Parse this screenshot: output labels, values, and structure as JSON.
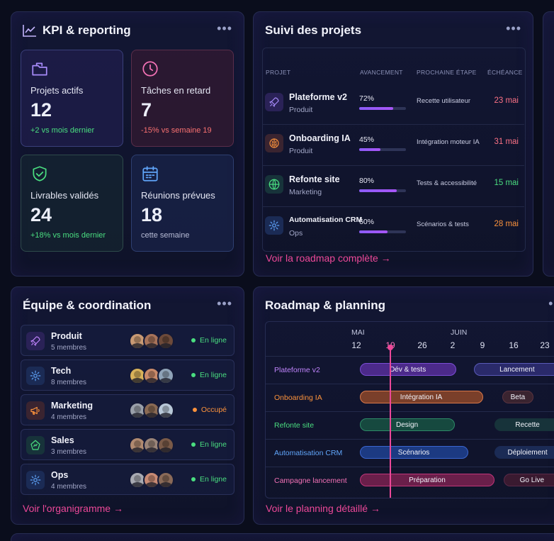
{
  "kpi": {
    "title": "KPI & reporting",
    "cards": [
      {
        "label": "Projets actifs",
        "value": "12",
        "sub": "+2 vs mois dernier",
        "icon": "folder-icon",
        "color": "#a78bfa"
      },
      {
        "label": "Tâches en retard",
        "value": "7",
        "sub": "-15% vs semaine 19",
        "icon": "clock-icon",
        "color": "#f472b6"
      },
      {
        "label": "Livrables validés",
        "value": "24",
        "sub": "+18% vs mois dernier",
        "icon": "shield-check-icon",
        "color": "#4ade80"
      },
      {
        "label": "Réunions prévues",
        "value": "18",
        "sub": "cette semaine",
        "icon": "calendar-icon",
        "color": "#60a5fa"
      }
    ]
  },
  "projects": {
    "title": "Suivi des projets",
    "headers": {
      "project": "PROJET",
      "progress": "AVANCEMENT",
      "next": "PROCHAINE ÉTAPE",
      "due": "ÉCHÉANCE"
    },
    "rows": [
      {
        "name": "Plateforme v2",
        "cat": "Produit",
        "pct": "72%",
        "progress": 0.72,
        "step": "Recette utilisateur",
        "due": "23 mai",
        "dueColor": "#fb7185",
        "icon": "rocket-icon",
        "iconColor": "#a78bfa",
        "iconBg": "#2a2257"
      },
      {
        "name": "Onboarding IA",
        "cat": "Produit",
        "pct": "45%",
        "progress": 0.45,
        "step": "Intégration moteur IA",
        "due": "31 mai",
        "dueColor": "#fb7185",
        "icon": "brain-icon",
        "iconColor": "#fb923c",
        "iconBg": "#3a2430"
      },
      {
        "name": "Refonte site",
        "cat": "Marketing",
        "pct": "80%",
        "progress": 0.8,
        "step": "Tests & accessibilité",
        "due": "15 mai",
        "dueColor": "#4ade80",
        "icon": "globe-icon",
        "iconColor": "#4ade80",
        "iconBg": "#17333a"
      },
      {
        "name": "Automatisation CRM",
        "cat": "Ops",
        "pct": "60%",
        "progress": 0.6,
        "step": "Scénarios & tests",
        "due": "28 mai",
        "dueColor": "#fb923c",
        "icon": "gear-icon",
        "iconColor": "#60a5fa",
        "iconBg": "#1b2b55"
      }
    ],
    "link": "Voir la roadmap complète"
  },
  "team": {
    "title": "Équipe & coordination",
    "rows": [
      {
        "name": "Produit",
        "count": "5 membres",
        "status": "En ligne",
        "statusColor": "#4ade80",
        "icon": "rocket-icon",
        "iconColor": "#c084fc",
        "iconBg": "#2a2257",
        "avatars": [
          "#c99a74",
          "#a8735a",
          "#6d4a3a"
        ]
      },
      {
        "name": "Tech",
        "count": "8 membres",
        "status": "En ligne",
        "statusColor": "#4ade80",
        "icon": "gear-icon",
        "iconColor": "#60a5fa",
        "iconBg": "#1b2b55",
        "avatars": [
          "#d8b25a",
          "#c98a6a",
          "#8fa3b8"
        ]
      },
      {
        "name": "Marketing",
        "count": "4 membres",
        "status": "Occupé",
        "statusColor": "#fb923c",
        "icon": "megaphone-icon",
        "iconColor": "#fb923c",
        "iconBg": "#3a2430",
        "avatars": [
          "#9aa0aa",
          "#8a6a54",
          "#b8c8d8"
        ]
      },
      {
        "name": "Sales",
        "count": "3 membres",
        "status": "En ligne",
        "statusColor": "#4ade80",
        "icon": "chart-icon",
        "iconColor": "#4ade80",
        "iconBg": "#17333a",
        "avatars": [
          "#b08a70",
          "#9a8478",
          "#7a5a48"
        ]
      },
      {
        "name": "Ops",
        "count": "4 membres",
        "status": "En ligne",
        "statusColor": "#4ade80",
        "icon": "gear-icon",
        "iconColor": "#60a5fa",
        "iconBg": "#1b2b55",
        "avatars": [
          "#a8aab2",
          "#c88a74",
          "#8a6a58"
        ]
      }
    ],
    "link": "Voir l'organigramme"
  },
  "roadmap": {
    "title": "Roadmap & planning",
    "months": [
      "MAI",
      "JUIN"
    ],
    "ticks": [
      "12",
      "19",
      "26",
      "2",
      "9",
      "16",
      "23"
    ],
    "rows": [
      {
        "label": "Plateforme v2",
        "labelColor": "#c084fc",
        "bars": [
          {
            "text": "Dév & tests",
            "bg": "#4c2a8a",
            "border": "#7c4dd6",
            "start": 0.3155,
            "end": 0.64
          },
          {
            "text": "Lancement",
            "bg": "#2a2a6a",
            "border": "#5a5ab8",
            "start": 0.7,
            "end": 0.99
          }
        ]
      },
      {
        "label": "Onboarding IA",
        "labelColor": "#fb923c",
        "bars": [
          {
            "text": "Intégration IA",
            "bg": "#7a3f2a",
            "border": "#d9784a",
            "start": 0.3155,
            "end": 0.73
          },
          {
            "text": "Beta",
            "bg": "#3a2430",
            "border": "#5a3440",
            "start": 0.795,
            "end": 0.9
          }
        ]
      },
      {
        "label": "Refonte site",
        "labelColor": "#4ade80",
        "bars": [
          {
            "text": "Design",
            "bg": "#16493f",
            "border": "#2e8a68",
            "start": 0.3155,
            "end": 0.635
          },
          {
            "text": "Recette",
            "bg": "#17333a",
            "border": "#17333a",
            "start": 0.77,
            "end": 0.99
          }
        ]
      },
      {
        "label": "Automatisation CRM",
        "labelColor": "#60a5fa",
        "bars": [
          {
            "text": "Scénarios",
            "bg": "#1c3a82",
            "border": "#3b66d0",
            "start": 0.3155,
            "end": 0.68
          },
          {
            "text": "Déploiement",
            "bg": "#1b2b55",
            "border": "#1b2b55",
            "start": 0.77,
            "end": 0.99
          }
        ]
      },
      {
        "label": "Campagne lancement",
        "labelColor": "#f472b6",
        "bars": [
          {
            "text": "Préparation",
            "bg": "#6a1f4a",
            "border": "#c0367a",
            "start": 0.3155,
            "end": 0.77
          },
          {
            "text": "Go Live",
            "bg": "#3a1a30",
            "border": "#5a2a48",
            "start": 0.8,
            "end": 0.99
          }
        ]
      }
    ],
    "link": "Voir le planning détaillé"
  }
}
